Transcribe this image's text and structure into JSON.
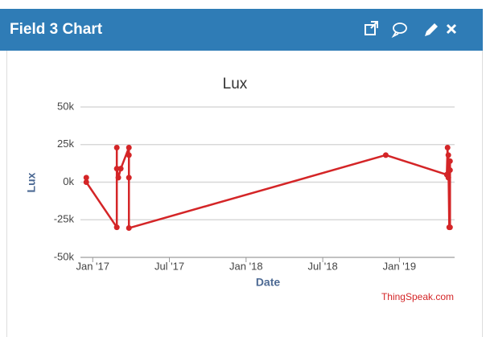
{
  "header": {
    "title": "Field 3 Chart"
  },
  "chart_data": {
    "type": "line",
    "title": "Lux",
    "xlabel": "Date",
    "ylabel": "Lux",
    "credit": "ThingSpeak.com",
    "x": [
      2016.958,
      2016.958,
      2017.157,
      2017.157,
      2017.157,
      2017.167,
      2017.183,
      2017.236,
      2017.236,
      2017.236,
      2017.236,
      2018.911,
      2019.309,
      2019.314,
      2019.319,
      2019.319,
      2019.325,
      2019.33,
      2019.33,
      2019.33
    ],
    "series": [
      {
        "name": "Lux",
        "color": "#d42527",
        "values": [
          3000,
          0,
          -30000,
          23000,
          9000,
          3000,
          9000,
          23000,
          18000,
          3000,
          -30500,
          18000,
          5000,
          23000,
          3000,
          18000,
          -30000,
          -30000,
          8000,
          14000
        ]
      }
    ],
    "xlim": [
      2016.92,
      2019.36
    ],
    "xticks": [
      {
        "value": 2017,
        "label": "Jan '17"
      },
      {
        "value": 2017.5,
        "label": "Jul '17"
      },
      {
        "value": 2018,
        "label": "Jan '18"
      },
      {
        "value": 2018.5,
        "label": "Jul '18"
      },
      {
        "value": 2019,
        "label": "Jan '19"
      }
    ],
    "ylim": [
      -50000,
      50000
    ],
    "yticks": [
      {
        "value": -50000,
        "label": "-50k"
      },
      {
        "value": -25000,
        "label": "-25k"
      },
      {
        "value": 0,
        "label": "0k"
      },
      {
        "value": 25000,
        "label": "25k"
      },
      {
        "value": 50000,
        "label": "50k"
      }
    ],
    "grid": true
  }
}
